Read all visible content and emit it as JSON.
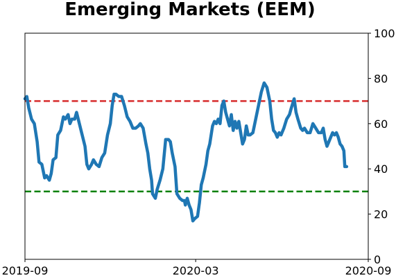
{
  "chart_data": {
    "type": "line",
    "title": "Emerging Markets (EEM)",
    "xlabel": "",
    "ylabel": "",
    "xlim": [
      "2019-09-01",
      "2020-09-01"
    ],
    "ylim": [
      0,
      100
    ],
    "x_ticks": [
      "2019-09",
      "2020-03",
      "2020-09"
    ],
    "y_ticks": [
      0,
      20,
      40,
      60,
      80,
      100
    ],
    "y_axis_side": "right",
    "grid": false,
    "series": [
      {
        "color": "#1f77b4",
        "points": [
          [
            "2019-09-01",
            71
          ],
          [
            "2019-09-03",
            72
          ],
          [
            "2019-09-05",
            67
          ],
          [
            "2019-09-08",
            62
          ],
          [
            "2019-09-11",
            60
          ],
          [
            "2019-09-14",
            52
          ],
          [
            "2019-09-16",
            43
          ],
          [
            "2019-09-19",
            42
          ],
          [
            "2019-09-22",
            36
          ],
          [
            "2019-09-24",
            37
          ],
          [
            "2019-09-27",
            35
          ],
          [
            "2019-09-29",
            38
          ],
          [
            "2019-10-01",
            44
          ],
          [
            "2019-10-04",
            45
          ],
          [
            "2019-10-06",
            55
          ],
          [
            "2019-10-09",
            57
          ],
          [
            "2019-10-12",
            63
          ],
          [
            "2019-10-14",
            62
          ],
          [
            "2019-10-17",
            64
          ],
          [
            "2019-10-19",
            60
          ],
          [
            "2019-10-21",
            62
          ],
          [
            "2019-10-24",
            62
          ],
          [
            "2019-10-26",
            65
          ],
          [
            "2019-10-29",
            60
          ],
          [
            "2019-11-01",
            55
          ],
          [
            "2019-11-04",
            50
          ],
          [
            "2019-11-06",
            42
          ],
          [
            "2019-11-08",
            40
          ],
          [
            "2019-11-11",
            42
          ],
          [
            "2019-11-13",
            44
          ],
          [
            "2019-11-16",
            42
          ],
          [
            "2019-11-19",
            41
          ],
          [
            "2019-11-22",
            45
          ],
          [
            "2019-11-25",
            47
          ],
          [
            "2019-11-28",
            55
          ],
          [
            "2019-12-01",
            60
          ],
          [
            "2019-12-03",
            68
          ],
          [
            "2019-12-05",
            73
          ],
          [
            "2019-12-07",
            73
          ],
          [
            "2019-12-10",
            72
          ],
          [
            "2019-12-13",
            72
          ],
          [
            "2019-12-16",
            68
          ],
          [
            "2019-12-19",
            63
          ],
          [
            "2019-12-22",
            61
          ],
          [
            "2019-12-25",
            58
          ],
          [
            "2019-12-28",
            58
          ],
          [
            "2019-12-31",
            59
          ],
          [
            "2020-01-02",
            60
          ],
          [
            "2020-01-05",
            58
          ],
          [
            "2020-01-08",
            51
          ],
          [
            "2020-01-10",
            47
          ],
          [
            "2020-01-12",
            40
          ],
          [
            "2020-01-14",
            35
          ],
          [
            "2020-01-15",
            29
          ],
          [
            "2020-01-18",
            27
          ],
          [
            "2020-01-20",
            31
          ],
          [
            "2020-01-23",
            35
          ],
          [
            "2020-01-26",
            40
          ],
          [
            "2020-01-29",
            53
          ],
          [
            "2020-02-01",
            53
          ],
          [
            "2020-02-03",
            52
          ],
          [
            "2020-02-05",
            47
          ],
          [
            "2020-02-08",
            41
          ],
          [
            "2020-02-10",
            29
          ],
          [
            "2020-02-13",
            27
          ],
          [
            "2020-02-16",
            26
          ],
          [
            "2020-02-18",
            26
          ],
          [
            "2020-02-19",
            24
          ],
          [
            "2020-02-21",
            27
          ],
          [
            "2020-02-23",
            24
          ],
          [
            "2020-02-25",
            22
          ],
          [
            "2020-02-27",
            17
          ],
          [
            "2020-02-29",
            18
          ],
          [
            "2020-03-03",
            19
          ],
          [
            "2020-03-05",
            25
          ],
          [
            "2020-03-07",
            33
          ],
          [
            "2020-03-09",
            36
          ],
          [
            "2020-03-12",
            42
          ],
          [
            "2020-03-14",
            48
          ],
          [
            "2020-03-16",
            51
          ],
          [
            "2020-03-19",
            59
          ],
          [
            "2020-03-21",
            61
          ],
          [
            "2020-03-23",
            60
          ],
          [
            "2020-03-25",
            62
          ],
          [
            "2020-03-27",
            60
          ],
          [
            "2020-03-29",
            68
          ],
          [
            "2020-03-31",
            70
          ],
          [
            "2020-04-02",
            65
          ],
          [
            "2020-04-04",
            62
          ],
          [
            "2020-04-06",
            59
          ],
          [
            "2020-04-08",
            64
          ],
          [
            "2020-04-10",
            57
          ],
          [
            "2020-04-12",
            61
          ],
          [
            "2020-04-14",
            58
          ],
          [
            "2020-04-16",
            61
          ],
          [
            "2020-04-18",
            56
          ],
          [
            "2020-04-20",
            51
          ],
          [
            "2020-04-22",
            53
          ],
          [
            "2020-04-24",
            59
          ],
          [
            "2020-04-26",
            55
          ],
          [
            "2020-04-28",
            55
          ],
          [
            "2020-05-01",
            56
          ],
          [
            "2020-05-04",
            62
          ],
          [
            "2020-05-07",
            68
          ],
          [
            "2020-05-10",
            74
          ],
          [
            "2020-05-13",
            78
          ],
          [
            "2020-05-16",
            76
          ],
          [
            "2020-05-19",
            70
          ],
          [
            "2020-05-21",
            62
          ],
          [
            "2020-05-23",
            57
          ],
          [
            "2020-05-25",
            56
          ],
          [
            "2020-05-27",
            54
          ],
          [
            "2020-05-29",
            56
          ],
          [
            "2020-05-31",
            55
          ],
          [
            "2020-06-03",
            58
          ],
          [
            "2020-06-06",
            62
          ],
          [
            "2020-06-09",
            64
          ],
          [
            "2020-06-11",
            67
          ],
          [
            "2020-06-14",
            71
          ],
          [
            "2020-06-16",
            65
          ],
          [
            "2020-06-18",
            62
          ],
          [
            "2020-06-21",
            58
          ],
          [
            "2020-06-23",
            57
          ],
          [
            "2020-06-25",
            58
          ],
          [
            "2020-06-28",
            56
          ],
          [
            "2020-07-01",
            56
          ],
          [
            "2020-07-04",
            60
          ],
          [
            "2020-07-07",
            58
          ],
          [
            "2020-07-10",
            56
          ],
          [
            "2020-07-13",
            56
          ],
          [
            "2020-07-15",
            58
          ],
          [
            "2020-07-17",
            53
          ],
          [
            "2020-07-19",
            50
          ],
          [
            "2020-07-21",
            52
          ],
          [
            "2020-07-23",
            54
          ],
          [
            "2020-07-25",
            56
          ],
          [
            "2020-07-27",
            55
          ],
          [
            "2020-07-29",
            56
          ],
          [
            "2020-07-31",
            54
          ],
          [
            "2020-08-02",
            51
          ],
          [
            "2020-08-04",
            50
          ],
          [
            "2020-08-06",
            48
          ],
          [
            "2020-08-07",
            41
          ],
          [
            "2020-08-09",
            41
          ]
        ]
      }
    ],
    "reference_lines": [
      {
        "y": 70,
        "color": "#d62728",
        "style": "dashed"
      },
      {
        "y": 30,
        "color": "#008000",
        "style": "dashed"
      }
    ]
  }
}
